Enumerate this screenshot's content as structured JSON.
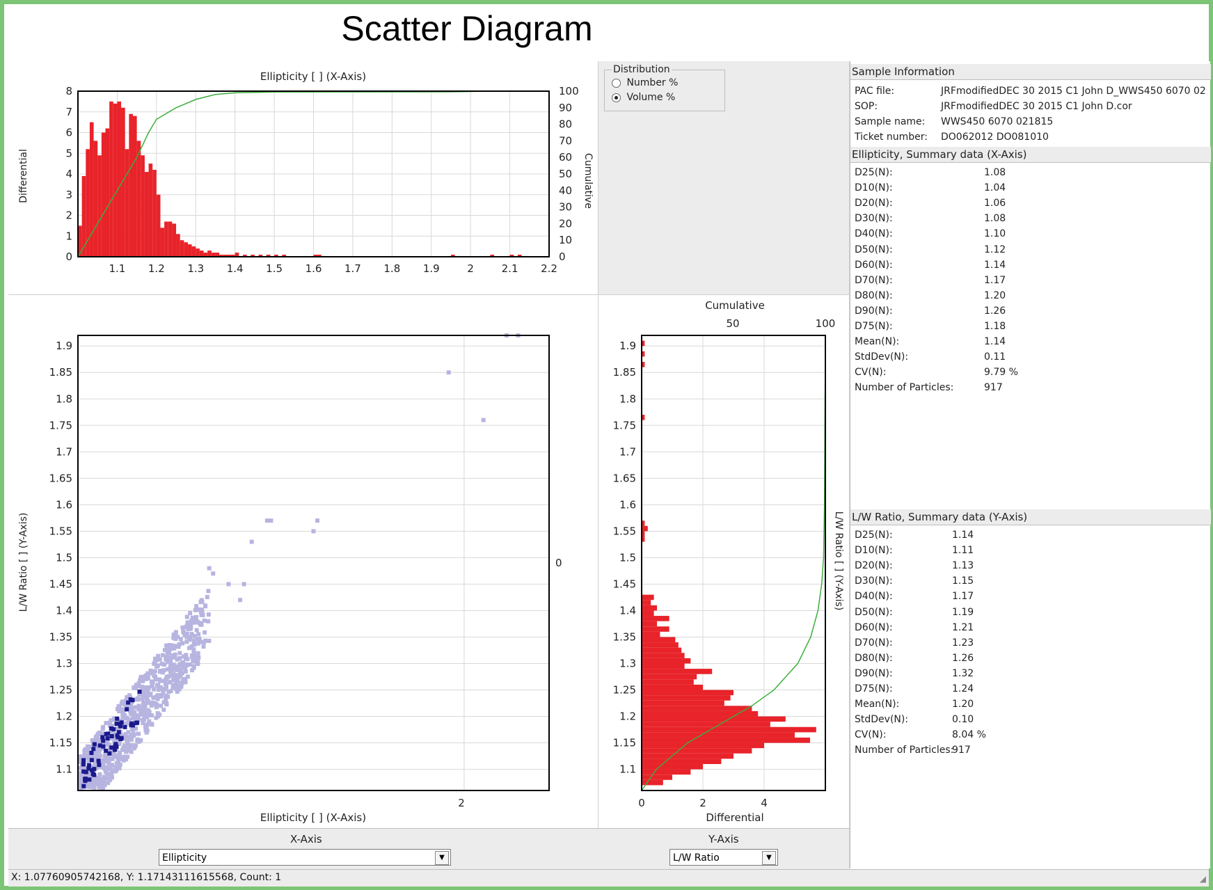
{
  "title": "Scatter Diagram",
  "top_chart": {
    "title": "Ellipticity [ ] (X-Axis)",
    "left_label": "Differential",
    "right_label": "Cumulative",
    "x_ticks": [
      "1.1",
      "1.2",
      "1.3",
      "1.4",
      "1.5",
      "1.6",
      "1.7",
      "1.8",
      "1.9",
      "2",
      "2.1",
      "2.2"
    ],
    "y_ticks": [
      "0",
      "1",
      "2",
      "3",
      "4",
      "5",
      "6",
      "7",
      "8"
    ],
    "y2_ticks": [
      "0",
      "10",
      "20",
      "30",
      "40",
      "50",
      "60",
      "70",
      "80",
      "90",
      "100"
    ]
  },
  "scatter_chart": {
    "y_label": "L/W Ratio [ ] (Y-Axis)",
    "x_label": "Ellipticity [ ] (X-Axis)",
    "y_ticks": [
      "1.1",
      "1.15",
      "1.2",
      "1.25",
      "1.3",
      "1.35",
      "1.4",
      "1.45",
      "1.5",
      "1.55",
      "1.6",
      "1.65",
      "1.7",
      "1.75",
      "1.8",
      "1.85",
      "1.9"
    ],
    "x_tick": "2",
    "right_tick": "0"
  },
  "side_chart": {
    "top_label": "Cumulative",
    "top_ticks": [
      "50",
      "100"
    ],
    "bottom_label": "Differential",
    "bottom_ticks": [
      "0",
      "2",
      "4"
    ],
    "right_label": "L/W Ratio [ ] (Y-Axis)",
    "y_ticks": [
      "1.1",
      "1.15",
      "1.2",
      "1.25",
      "1.3",
      "1.35",
      "1.4",
      "1.45",
      "1.5",
      "1.55",
      "1.6",
      "1.65",
      "1.7",
      "1.75",
      "1.8",
      "1.85",
      "1.9"
    ]
  },
  "distribution": {
    "legend": "Distribution",
    "options": [
      {
        "label": "Number %",
        "selected": false
      },
      {
        "label": "Volume %",
        "selected": true
      }
    ]
  },
  "sample_info": {
    "header": "Sample Information",
    "rows": [
      {
        "key": "PAC file:",
        "value": "JRFmodifiedDEC 30 2015 C1 John D_WWS450  6070  02"
      },
      {
        "key": "SOP:",
        "value": "JRFmodifiedDEC 30 2015 C1 John D.cor"
      },
      {
        "key": "Sample name:",
        "value": "WWS450  6070   021815"
      },
      {
        "key": "Ticket number:",
        "value": "DO062012 DO081010"
      }
    ]
  },
  "ellipticity_summary": {
    "header": "Ellipticity, Summary data (X-Axis)",
    "rows": [
      {
        "key": "D25(N):",
        "value": "1.08"
      },
      {
        "key": "D10(N):",
        "value": "1.04"
      },
      {
        "key": "D20(N):",
        "value": "1.06"
      },
      {
        "key": "D30(N):",
        "value": "1.08"
      },
      {
        "key": "D40(N):",
        "value": "1.10"
      },
      {
        "key": "D50(N):",
        "value": "1.12"
      },
      {
        "key": "D60(N):",
        "value": "1.14"
      },
      {
        "key": "D70(N):",
        "value": "1.17"
      },
      {
        "key": "D80(N):",
        "value": "1.20"
      },
      {
        "key": "D90(N):",
        "value": "1.26"
      },
      {
        "key": "D75(N):",
        "value": "1.18"
      },
      {
        "key": "Mean(N):",
        "value": "1.14"
      },
      {
        "key": "StdDev(N):",
        "value": "0.11"
      },
      {
        "key": "CV(N):",
        "value": "9.79 %"
      },
      {
        "key": "Number of Particles:",
        "value": "917"
      }
    ]
  },
  "lw_summary": {
    "header": "L/W Ratio, Summary data (Y-Axis)",
    "rows": [
      {
        "key": "D25(N):",
        "value": "1.14"
      },
      {
        "key": "D10(N):",
        "value": "1.11"
      },
      {
        "key": "D20(N):",
        "value": "1.13"
      },
      {
        "key": "D30(N):",
        "value": "1.15"
      },
      {
        "key": "D40(N):",
        "value": "1.17"
      },
      {
        "key": "D50(N):",
        "value": "1.19"
      },
      {
        "key": "D60(N):",
        "value": "1.21"
      },
      {
        "key": "D70(N):",
        "value": "1.23"
      },
      {
        "key": "D80(N):",
        "value": "1.26"
      },
      {
        "key": "D90(N):",
        "value": "1.32"
      },
      {
        "key": "D75(N):",
        "value": "1.24"
      },
      {
        "key": "Mean(N):",
        "value": "1.20"
      },
      {
        "key": "StdDev(N):",
        "value": "0.10"
      },
      {
        "key": "CV(N):",
        "value": "8.04 %"
      },
      {
        "key": "Number of Particles:",
        "value": "917"
      }
    ]
  },
  "axis_select": {
    "x_label": "X-Axis",
    "x_value": "Ellipticity",
    "y_label": "Y-Axis",
    "y_value": "L/W Ratio"
  },
  "status_bar": "X: 1.07760905742168, Y: 1.17143111615568, Count: 1",
  "colors": {
    "bars": "#e8232a",
    "cumulative": "#3cae3c",
    "scatter": "#b7b4e0",
    "scatter_dark": "#1a1a8c",
    "frame": "#7cc576"
  },
  "chart_data": [
    {
      "type": "bar",
      "title": "Ellipticity [ ] (X-Axis)",
      "ylabel": "Differential",
      "y2label": "Cumulative",
      "xlim": [
        1.0,
        2.2
      ],
      "ylim": [
        0,
        8
      ],
      "y2lim": [
        0,
        100
      ],
      "bin_starts": [
        1.0,
        1.01,
        1.02,
        1.03,
        1.04,
        1.05,
        1.06,
        1.07,
        1.08,
        1.09,
        1.1,
        1.11,
        1.12,
        1.13,
        1.14,
        1.15,
        1.16,
        1.17,
        1.18,
        1.19,
        1.2,
        1.21,
        1.22,
        1.23,
        1.24,
        1.25,
        1.26,
        1.27,
        1.28,
        1.29,
        1.3,
        1.31,
        1.32,
        1.33,
        1.34,
        1.35,
        1.36,
        1.37,
        1.38,
        1.39,
        1.4,
        1.42,
        1.44,
        1.46,
        1.48,
        1.5,
        1.52,
        1.6,
        1.61,
        1.95,
        2.05,
        2.1,
        2.12
      ],
      "values": [
        1.5,
        3.9,
        5.2,
        6.5,
        5.6,
        4.9,
        6.0,
        6.2,
        7.5,
        7.4,
        7.5,
        7.2,
        5.2,
        6.9,
        6.8,
        5.6,
        4.9,
        4.1,
        4.5,
        4.2,
        3.0,
        1.4,
        1.7,
        1.7,
        1.6,
        1.1,
        0.8,
        0.7,
        0.6,
        0.5,
        0.4,
        0.3,
        0.2,
        0.3,
        0.2,
        0.2,
        0.1,
        0.1,
        0.1,
        0.1,
        0.2,
        0.1,
        0.1,
        0.1,
        0.1,
        0.1,
        0.1,
        0.1,
        0.1,
        0.1,
        0.1,
        0.1,
        0.1
      ],
      "cumulative": [
        [
          1.0,
          0
        ],
        [
          1.05,
          20
        ],
        [
          1.1,
          40
        ],
        [
          1.13,
          52
        ],
        [
          1.15,
          60
        ],
        [
          1.18,
          75
        ],
        [
          1.2,
          83
        ],
        [
          1.25,
          90
        ],
        [
          1.3,
          95
        ],
        [
          1.35,
          98
        ],
        [
          1.4,
          99
        ],
        [
          1.5,
          99.5
        ],
        [
          1.95,
          99.6
        ],
        [
          2.05,
          100
        ],
        [
          2.2,
          100
        ]
      ]
    },
    {
      "type": "scatter",
      "xlabel": "Ellipticity [ ] (X-Axis)",
      "ylabel": "L/W Ratio [ ] (Y-Axis)",
      "xlim": [
        1.0,
        2.22
      ],
      "ylim": [
        1.06,
        1.92
      ],
      "outliers": [
        [
          1.96,
          1.85
        ],
        [
          2.05,
          1.76
        ],
        [
          2.11,
          1.92
        ],
        [
          2.14,
          1.92
        ],
        [
          1.49,
          1.57
        ],
        [
          1.5,
          1.57
        ],
        [
          1.62,
          1.57
        ],
        [
          1.61,
          1.55
        ],
        [
          1.45,
          1.53
        ],
        [
          1.34,
          1.48
        ],
        [
          1.35,
          1.47
        ],
        [
          1.39,
          1.45
        ],
        [
          1.43,
          1.45
        ],
        [
          1.42,
          1.42
        ]
      ]
    },
    {
      "type": "bar",
      "orientation": "horizontal",
      "xlabel": "Differential",
      "x2label": "Cumulative",
      "ylabel": "L/W Ratio [ ] (Y-Axis)",
      "ylim": [
        1.06,
        1.92
      ],
      "xlim": [
        0,
        6
      ],
      "x2lim": [
        0,
        100
      ],
      "bin_starts": [
        1.07,
        1.08,
        1.09,
        1.1,
        1.11,
        1.12,
        1.13,
        1.14,
        1.15,
        1.16,
        1.17,
        1.18,
        1.19,
        1.2,
        1.21,
        1.22,
        1.23,
        1.24,
        1.25,
        1.26,
        1.27,
        1.28,
        1.29,
        1.3,
        1.31,
        1.32,
        1.33,
        1.34,
        1.35,
        1.36,
        1.37,
        1.38,
        1.39,
        1.4,
        1.41,
        1.42,
        1.53,
        1.54,
        1.55,
        1.56,
        1.76,
        1.86,
        1.88,
        1.9
      ],
      "values": [
        0.7,
        1.0,
        1.6,
        2.0,
        2.6,
        3.0,
        3.6,
        4.0,
        5.5,
        5.0,
        5.7,
        4.2,
        4.7,
        3.8,
        3.6,
        2.7,
        2.9,
        3.0,
        2.0,
        1.7,
        1.8,
        2.3,
        1.4,
        1.6,
        1.4,
        1.3,
        1.2,
        1.1,
        0.6,
        0.9,
        0.5,
        0.9,
        0.4,
        0.5,
        0.3,
        0.4,
        0.1,
        0.1,
        0.2,
        0.1,
        0.1,
        0.1,
        0.1,
        0.1
      ],
      "cumulative": [
        [
          1.06,
          0
        ],
        [
          1.1,
          8
        ],
        [
          1.15,
          25
        ],
        [
          1.2,
          50
        ],
        [
          1.22,
          60
        ],
        [
          1.25,
          72
        ],
        [
          1.3,
          85
        ],
        [
          1.35,
          92
        ],
        [
          1.4,
          96
        ],
        [
          1.45,
          98
        ],
        [
          1.5,
          99
        ],
        [
          1.6,
          99.5
        ],
        [
          1.9,
          100
        ]
      ]
    }
  ]
}
